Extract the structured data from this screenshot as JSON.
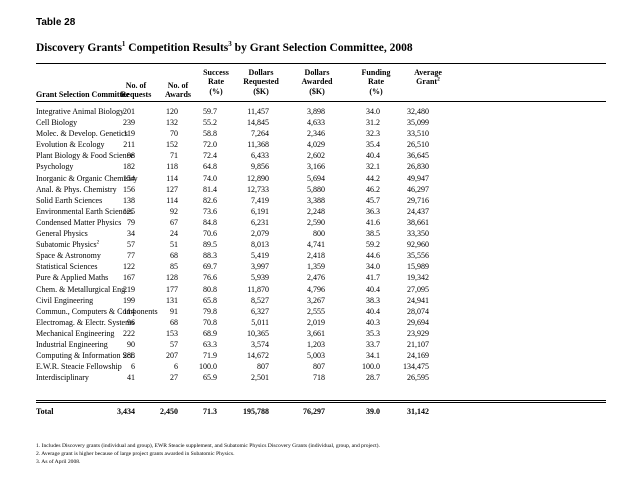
{
  "table_label": "Table 28",
  "title": {
    "main": "Discovery Grants",
    "sup1": "1",
    "mid": " Competition Results",
    "sup2": "3",
    "rest": " by Grant Selection Committee, 2008"
  },
  "headers": {
    "committee": "Grant Selection Committee",
    "requests": [
      "No. of",
      "Requests"
    ],
    "awards": [
      "No. of",
      "Awards"
    ],
    "success": [
      "Success",
      "Rate",
      "(%)"
    ],
    "requested": [
      "Dollars",
      "Requested",
      "($K)"
    ],
    "awarded": [
      "Dollars",
      "Awarded",
      "($K)"
    ],
    "funding": [
      "Funding",
      "Rate",
      "(%)"
    ],
    "grant": [
      "Average",
      "Grant",
      "2"
    ]
  },
  "rows": [
    {
      "name": "Integrative Animal Biology",
      "sup": "",
      "req": "201",
      "awd": "120",
      "succ": "59.7",
      "dreq": "11,457",
      "dawd": "3,898",
      "fund": "34.0",
      "avg": "32,480"
    },
    {
      "name": "Cell Biology",
      "sup": "",
      "req": "239",
      "awd": "132",
      "succ": "55.2",
      "dreq": "14,845",
      "dawd": "4,633",
      "fund": "31.2",
      "avg": "35,099"
    },
    {
      "name": "Molec. & Develop. Genetics",
      "sup": "",
      "req": "119",
      "awd": "70",
      "succ": "58.8",
      "dreq": "7,264",
      "dawd": "2,346",
      "fund": "32.3",
      "avg": "33,510"
    },
    {
      "name": "Evolution & Ecology",
      "sup": "",
      "req": "211",
      "awd": "152",
      "succ": "72.0",
      "dreq": "11,368",
      "dawd": "4,029",
      "fund": "35.4",
      "avg": "26,510"
    },
    {
      "name": "Plant Biology & Food Science",
      "sup": "",
      "req": "98",
      "awd": "71",
      "succ": "72.4",
      "dreq": "6,433",
      "dawd": "2,602",
      "fund": "40.4",
      "avg": "36,645"
    },
    {
      "name": "Psychology",
      "sup": "",
      "req": "182",
      "awd": "118",
      "succ": "64.8",
      "dreq": "9,856",
      "dawd": "3,166",
      "fund": "32.1",
      "avg": "26,830"
    },
    {
      "name": "Inorganic & Organic Chemistry",
      "sup": "",
      "req": "154",
      "awd": "114",
      "succ": "74.0",
      "dreq": "12,890",
      "dawd": "5,694",
      "fund": "44.2",
      "avg": "49,947"
    },
    {
      "name": "Anal. & Phys. Chemistry",
      "sup": "",
      "req": "156",
      "awd": "127",
      "succ": "81.4",
      "dreq": "12,733",
      "dawd": "5,880",
      "fund": "46.2",
      "avg": "46,297"
    },
    {
      "name": "Solid Earth Sciences",
      "sup": "",
      "req": "138",
      "awd": "114",
      "succ": "82.6",
      "dreq": "7,419",
      "dawd": "3,388",
      "fund": "45.7",
      "avg": "29,716"
    },
    {
      "name": "Environmental Earth Sciences",
      "sup": "",
      "req": "125",
      "awd": "92",
      "succ": "73.6",
      "dreq": "6,191",
      "dawd": "2,248",
      "fund": "36.3",
      "avg": "24,437"
    },
    {
      "name": "Condensed Matter Physics",
      "sup": "",
      "req": "79",
      "awd": "67",
      "succ": "84.8",
      "dreq": "6,231",
      "dawd": "2,590",
      "fund": "41.6",
      "avg": "38,661"
    },
    {
      "name": "General Physics",
      "sup": "",
      "req": "34",
      "awd": "24",
      "succ": "70.6",
      "dreq": "2,079",
      "dawd": "800",
      "fund": "38.5",
      "avg": "33,350"
    },
    {
      "name": "Subatomic Physics",
      "sup": "2",
      "req": "57",
      "awd": "51",
      "succ": "89.5",
      "dreq": "8,013",
      "dawd": "4,741",
      "fund": "59.2",
      "avg": "92,960"
    },
    {
      "name": "Space & Astronomy",
      "sup": "",
      "req": "77",
      "awd": "68",
      "succ": "88.3",
      "dreq": "5,419",
      "dawd": "2,418",
      "fund": "44.6",
      "avg": "35,556"
    },
    {
      "name": "Statistical Sciences",
      "sup": "",
      "req": "122",
      "awd": "85",
      "succ": "69.7",
      "dreq": "3,997",
      "dawd": "1,359",
      "fund": "34.0",
      "avg": "15,989"
    },
    {
      "name": "Pure & Applied Maths",
      "sup": "",
      "req": "167",
      "awd": "128",
      "succ": "76.6",
      "dreq": "5,939",
      "dawd": "2,476",
      "fund": "41.7",
      "avg": "19,342"
    },
    {
      "name": "Chem. & Metallurgical Eng.",
      "sup": "",
      "req": "219",
      "awd": "177",
      "succ": "80.8",
      "dreq": "11,870",
      "dawd": "4,796",
      "fund": "40.4",
      "avg": "27,095"
    },
    {
      "name": "Civil Engineering",
      "sup": "",
      "req": "199",
      "awd": "131",
      "succ": "65.8",
      "dreq": "8,527",
      "dawd": "3,267",
      "fund": "38.3",
      "avg": "24,941"
    },
    {
      "name": "Commun., Computers & Components",
      "sup": "",
      "req": "114",
      "awd": "91",
      "succ": "79.8",
      "dreq": "6,327",
      "dawd": "2,555",
      "fund": "40.4",
      "avg": "28,074"
    },
    {
      "name": "Electromag. & Electr. Systems",
      "sup": "",
      "req": "96",
      "awd": "68",
      "succ": "70.8",
      "dreq": "5,011",
      "dawd": "2,019",
      "fund": "40.3",
      "avg": "29,694"
    },
    {
      "name": "Mechanical Engineering",
      "sup": "",
      "req": "222",
      "awd": "153",
      "succ": "68.9",
      "dreq": "10,365",
      "dawd": "3,661",
      "fund": "35.3",
      "avg": "23,929"
    },
    {
      "name": "Industrial Engineering",
      "sup": "",
      "req": "90",
      "awd": "57",
      "succ": "63.3",
      "dreq": "3,574",
      "dawd": "1,203",
      "fund": "33.7",
      "avg": "21,107"
    },
    {
      "name": "Computing & Information Sci.",
      "sup": "",
      "req": "288",
      "awd": "207",
      "succ": "71.9",
      "dreq": "14,672",
      "dawd": "5,003",
      "fund": "34.1",
      "avg": "24,169"
    },
    {
      "name": "E.W.R. Steacie Fellowship",
      "sup": "",
      "req": "6",
      "awd": "6",
      "succ": "100.0",
      "dreq": "807",
      "dawd": "807",
      "fund": "100.0",
      "avg": "134,475"
    },
    {
      "name": "Interdisciplinary",
      "sup": "",
      "req": "41",
      "awd": "27",
      "succ": "65.9",
      "dreq": "2,501",
      "fund": "28.7",
      "dawd": "718",
      "avg": "26,595"
    }
  ],
  "total": {
    "name": "Total",
    "req": "3,434",
    "awd": "2,450",
    "succ": "71.3",
    "dreq": "195,788",
    "dawd": "76,297",
    "fund": "39.0",
    "avg": "31,142"
  },
  "notes": [
    "1. Includes Discovery grants (individual and group), EWR Steacie supplement, and Subatomic Physics Discovery Grants (individual, group, and project).",
    "2. Average grant is higher because of large project grants awarded in Subatomic Physics.",
    "3. As of April 2008."
  ]
}
